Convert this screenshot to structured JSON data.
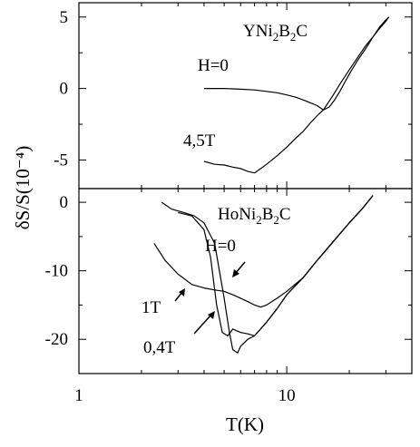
{
  "chart_data": [
    {
      "type": "line",
      "panel": "top",
      "title": "",
      "xlabel": "T(K)",
      "ylabel": "δS/S(10⁻⁴)",
      "x_scale": "log",
      "xlim": [
        1,
        40
      ],
      "ylim": [
        -7,
        6
      ],
      "xticks": [
        1,
        10
      ],
      "xtick_labels": [
        "1",
        "10"
      ],
      "yticks": [
        5,
        0,
        -5
      ],
      "ytick_labels": [
        "5",
        "0",
        "-5"
      ],
      "annotations": [
        {
          "text": "YNi2B2C",
          "base": "YNi",
          "sub1": "2",
          "mid": "B",
          "sub2": "2",
          "end": "C"
        },
        {
          "text": "H=0"
        },
        {
          "text": "4,5T"
        }
      ],
      "series": [
        {
          "x": [
            4.0,
            5.0,
            6.0,
            7.0,
            8.0,
            9.0,
            10.0,
            11.0,
            12.0,
            13.0,
            14.0,
            15.0,
            16.0,
            17.0,
            18.0,
            20.0,
            22.0,
            24.0,
            26.0,
            28.0,
            30.0,
            31.0
          ],
          "y": [
            0.0,
            0.0,
            -0.05,
            -0.1,
            -0.2,
            -0.3,
            -0.45,
            -0.6,
            -0.8,
            -1.0,
            -1.2,
            -1.5,
            -1.3,
            -0.8,
            -0.2,
            1.0,
            2.0,
            2.8,
            3.6,
            4.3,
            4.8,
            5.0
          ]
        },
        {
          "x": [
            4.0,
            4.5,
            5.0,
            5.5,
            6.0,
            6.5,
            7.0,
            7.5,
            8.0,
            9.0,
            10.0,
            11.0,
            12.0,
            13.0,
            14.0,
            15.0,
            16.0,
            17.0,
            18.0,
            20.0,
            22.0,
            24.0,
            26.0,
            28.0,
            30.0,
            31.0
          ],
          "y": [
            -5.1,
            -5.3,
            -5.35,
            -5.5,
            -5.6,
            -5.8,
            -5.9,
            -5.6,
            -5.3,
            -4.7,
            -4.1,
            -3.5,
            -3.0,
            -2.4,
            -1.9,
            -1.5,
            -0.9,
            -0.3,
            0.3,
            1.3,
            2.2,
            3.0,
            3.6,
            4.2,
            4.7,
            5.0
          ]
        }
      ]
    },
    {
      "type": "line",
      "panel": "bottom",
      "title": "",
      "xlabel": "T(K)",
      "ylabel": "δS/S(10⁻⁴)",
      "x_scale": "log",
      "xlim": [
        1,
        40
      ],
      "ylim": [
        -25,
        2
      ],
      "xticks": [
        1,
        10
      ],
      "xtick_labels": [
        "1",
        "10"
      ],
      "yticks": [
        0,
        -10,
        -20
      ],
      "ytick_labels": [
        "0",
        "-10",
        "-20"
      ],
      "annotations": [
        {
          "text": "HoNi2B2C",
          "base": "HoNi",
          "sub1": "2",
          "mid": "B",
          "sub2": "2",
          "end": "C"
        },
        {
          "text": "H=0"
        },
        {
          "text": "1T"
        },
        {
          "text": "0,4T"
        }
      ],
      "series": [
        {
          "x": [
            2.5,
            2.8,
            3.2,
            3.6,
            4.0,
            4.5,
            5.0,
            5.3,
            5.5,
            5.8,
            6.0,
            6.5,
            7.0,
            8.0,
            9.0,
            10.0,
            12.0,
            14.0,
            17.0,
            20.0,
            23.0,
            26.0
          ],
          "y": [
            0.0,
            -1.0,
            -1.5,
            -2.0,
            -3.0,
            -6.0,
            -14.0,
            -19.0,
            -21.5,
            -22.0,
            -21.0,
            -20.0,
            -19.5,
            -17.5,
            -15.5,
            -13.5,
            -11.0,
            -8.5,
            -5.5,
            -3.0,
            -1.0,
            1.0
          ]
        },
        {
          "x": [
            3.0,
            3.5,
            4.0,
            4.3,
            4.6,
            4.9,
            5.2,
            5.5,
            6.0,
            6.5,
            7.0,
            8.0,
            9.0,
            10.0,
            12.0,
            14.0,
            17.0,
            20.0,
            23.0,
            26.0
          ],
          "y": [
            -1.5,
            -2.0,
            -4.0,
            -8.0,
            -15.0,
            -19.0,
            -19.5,
            -18.5,
            -19.0,
            -19.2,
            -19.5,
            -17.5,
            -15.5,
            -13.5,
            -11.0,
            -8.5,
            -5.5,
            -3.0,
            -1.0,
            1.0
          ]
        },
        {
          "x": [
            2.3,
            2.6,
            3.0,
            3.5,
            4.0,
            4.5,
            5.0,
            5.5,
            6.0,
            6.5,
            7.0,
            7.5,
            8.0,
            9.0,
            10.0,
            12.0,
            14.0,
            17.0,
            20.0,
            23.0,
            26.0
          ],
          "y": [
            -6.0,
            -8.5,
            -10.5,
            -12.0,
            -12.5,
            -12.8,
            -13.0,
            -13.5,
            -14.0,
            -14.5,
            -15.0,
            -15.3,
            -15.0,
            -14.0,
            -13.0,
            -11.0,
            -8.5,
            -5.5,
            -3.0,
            -1.0,
            1.0
          ]
        }
      ]
    }
  ]
}
